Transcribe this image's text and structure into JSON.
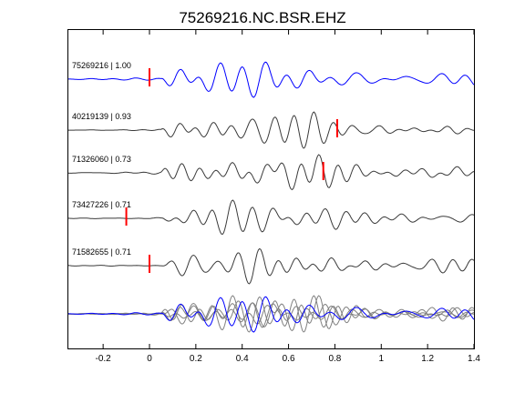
{
  "chart_data": {
    "type": "line",
    "title": "75269216.NC.BSR.EHZ",
    "xlabel": "",
    "ylabel": "",
    "xlim": [
      -0.35,
      1.4
    ],
    "xticks": [
      -0.2,
      0,
      0.2,
      0.4,
      0.6,
      0.8,
      1,
      1.2,
      1.4
    ],
    "xtick_labels": [
      "-0.2",
      "0",
      "0.2",
      "0.4",
      "0.6",
      "0.8",
      "1",
      "1.2",
      "1.4"
    ],
    "grid": false,
    "legend": "none",
    "colors": {
      "reference": "#0000ff",
      "correlated": "#3a3a3a",
      "stack": "#808080",
      "pick": "#ff0000",
      "axes": "#000000"
    },
    "traces": [
      {
        "id": "75269216",
        "cc": "1.00",
        "label": "75269216 | 1.00",
        "pick": 0.0,
        "color": "reference"
      },
      {
        "id": "40219139",
        "cc": "0.93",
        "label": "40219139 | 0.93",
        "pick": 0.81,
        "color": "correlated"
      },
      {
        "id": "71326060",
        "cc": "0.73",
        "label": "71326060 | 0.73",
        "pick": 0.75,
        "color": "correlated"
      },
      {
        "id": "73427226",
        "cc": "0.71",
        "label": "73427226 | 0.71",
        "pick": -0.1,
        "color": "correlated"
      },
      {
        "id": "71582655",
        "cc": "0.71",
        "label": "71582655 | 0.71",
        "pick": 0.0,
        "color": "correlated"
      }
    ]
  }
}
